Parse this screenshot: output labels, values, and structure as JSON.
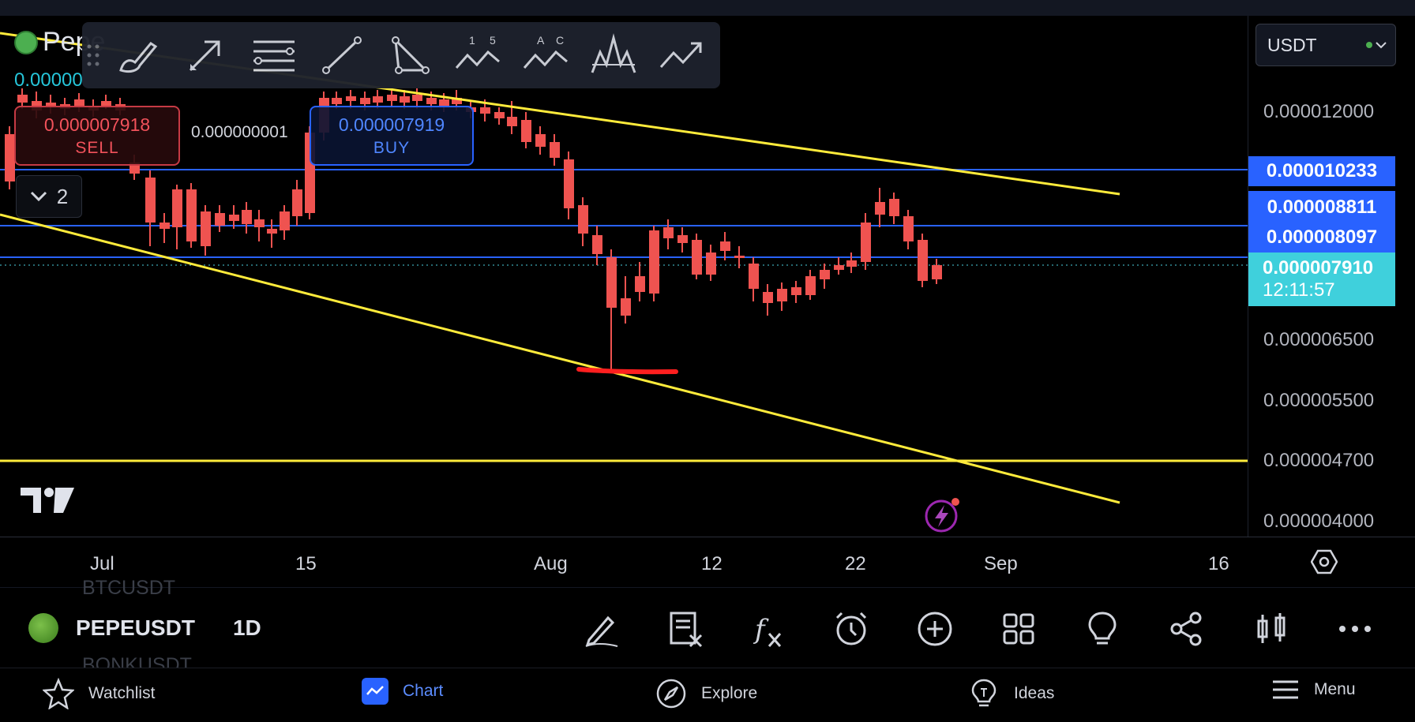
{
  "symbol": {
    "ticker_partial": "Pepe",
    "ohlc_partial": "0.00000",
    "name": "PEPEUSDT",
    "timeframe": "1D"
  },
  "trade": {
    "sell_price": "0.000007918",
    "sell_label": "SELL",
    "buy_price": "0.000007919",
    "buy_label": "BUY",
    "spread": "0.000000001"
  },
  "collapse": {
    "count": "2"
  },
  "currency": {
    "label": "USDT",
    "status_color": "#4caf50"
  },
  "price_axis": {
    "ticks": [
      "0.000012000",
      "0.000006500",
      "0.000005500",
      "0.000004700",
      "0.000004000"
    ],
    "levels": [
      "0.000010233",
      "0.000008811",
      "0.000008097"
    ],
    "current_price": "0.000007910",
    "countdown": "12:11:57"
  },
  "time_axis": {
    "labels": [
      "Jul",
      "15",
      "Aug",
      "12",
      "22",
      "Sep",
      "16"
    ]
  },
  "bottom_toolbar": {
    "ghost_above": "BTCUSDT",
    "ghost_below": "BONKUSDT",
    "icons": [
      "draw-icon",
      "object-tree-icon",
      "indicators-icon",
      "alert-icon",
      "add-icon",
      "layout-icon",
      "ideas-bulb-icon",
      "share-icon",
      "chart-type-icon",
      "more-icon"
    ]
  },
  "nav": {
    "watchlist": "Watchlist",
    "chart": "Chart",
    "explore": "Explore",
    "ideas": "Ideas",
    "menu": "Menu"
  },
  "draw_tools": {
    "elliott_labels": [
      "1",
      "5"
    ],
    "abc_labels": [
      "A",
      "C"
    ]
  },
  "colors": {
    "bull": "#26a69a",
    "bull_bright": "#5fd4e0",
    "bear": "#ef5350",
    "trendline": "#ffeb3b",
    "level": "#2962ff",
    "marker": "#ff1f1f"
  }
}
